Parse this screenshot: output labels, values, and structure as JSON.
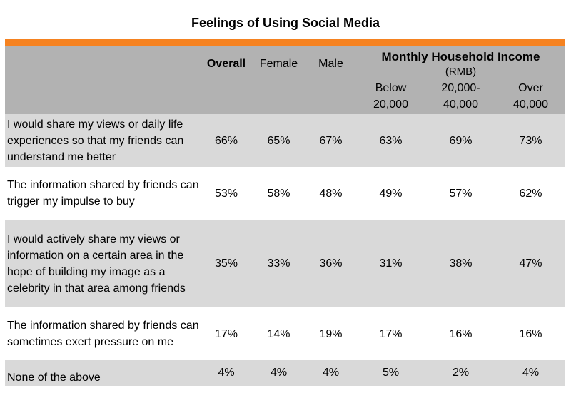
{
  "title": "Feelings of Using Social Media",
  "colors": {
    "accent_bar": "#f58220",
    "header_bg": "#b2b2b2",
    "row_shade": "#d9d9d9"
  },
  "header": {
    "overall": "Overall",
    "female": "Female",
    "male": "Male",
    "income_group": "Monthly Household Income",
    "income_unit": "(RMB)",
    "income_cols": [
      {
        "line1": "Below",
        "line2": "20,000"
      },
      {
        "line1": "20,000-",
        "line2": "40,000"
      },
      {
        "line1": "Over",
        "line2": "40,000"
      }
    ]
  },
  "rows": [
    {
      "label": "I would share my views or daily life experiences so that my friends can understand me better",
      "values": [
        "66%",
        "65%",
        "67%",
        "63%",
        "69%",
        "73%"
      ]
    },
    {
      "label": "The information shared by friends can trigger my impulse to buy",
      "values": [
        "53%",
        "58%",
        "48%",
        "49%",
        "57%",
        "62%"
      ]
    },
    {
      "label": "I would actively share my views or information on a certain area in the hope of building my image as a celebrity in that area among friends",
      "values": [
        "35%",
        "33%",
        "36%",
        "31%",
        "38%",
        "47%"
      ]
    },
    {
      "label": "The information shared by friends can sometimes exert pressure on me",
      "values": [
        "17%",
        "14%",
        "19%",
        "17%",
        "16%",
        "16%"
      ]
    },
    {
      "label": "None of the above",
      "values": [
        "4%",
        "4%",
        "4%",
        "5%",
        "2%",
        "4%"
      ]
    }
  ]
}
